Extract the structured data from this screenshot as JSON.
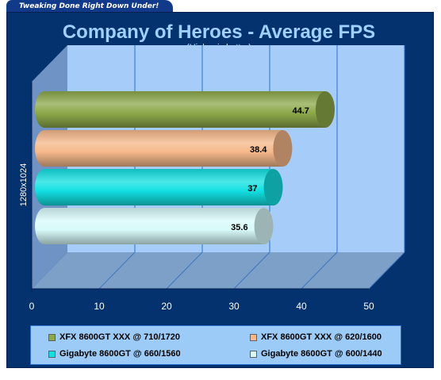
{
  "banner": "Tweaking Done Right Down Under!",
  "colors": {
    "frame": "#04326e",
    "plot_wall": "#a6cdf9",
    "plot_floor": "#7da0c8",
    "title": "#9fd0ff"
  },
  "chart_data": {
    "type": "bar",
    "orientation": "horizontal",
    "style": "3d-cylinder",
    "title": "Company of Heroes - Average FPS",
    "subtitle": "(Higher is better)",
    "categories": [
      "1280x1024"
    ],
    "xlim": [
      0,
      50
    ],
    "xticks": [
      "0",
      "10",
      "20",
      "30",
      "40",
      "50"
    ],
    "grid": true,
    "legend_position": "bottom",
    "series": [
      {
        "name": "XFX 8600GT XXX @ 710/1720",
        "values": [
          44.7
        ],
        "label": "44.7",
        "color": "#8ca84a"
      },
      {
        "name": "XFX 8600GT XXX @ 620/1600",
        "values": [
          38.4
        ],
        "label": "38.4",
        "color": "#f5b88a"
      },
      {
        "name": "Gigabyte  8600GT @ 660/1560",
        "values": [
          37
        ],
        "label": "37",
        "color": "#12e0e2"
      },
      {
        "name": "Gigabyte  8600GT @ 600/1440",
        "values": [
          35.6
        ],
        "label": "35.6",
        "color": "#d8fafa"
      }
    ]
  }
}
